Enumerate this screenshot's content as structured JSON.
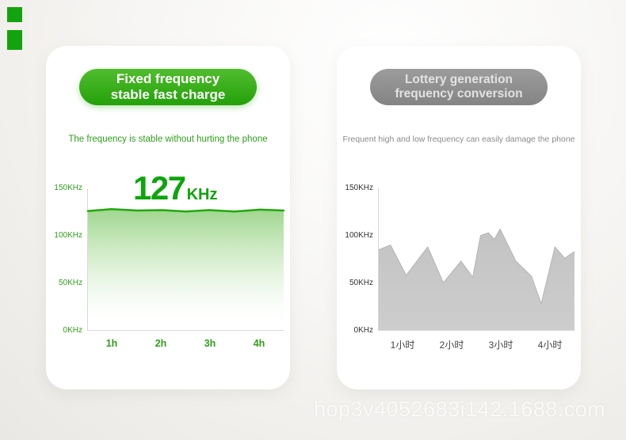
{
  "watermark": "hop3v4052683i142.1688.com",
  "panels": {
    "left": {
      "badge": [
        "Fixed frequency",
        "stable fast charge"
      ],
      "subtitle": "The frequency is stable without hurting the phone",
      "accent": "#23a00a"
    },
    "right": {
      "badge": [
        "Lottery generation",
        "frequency conversion"
      ],
      "subtitle": "Frequent high and low frequency can easily damage the phone",
      "accent": "#8f8f8f"
    }
  },
  "chart_data": [
    {
      "type": "area",
      "title": "Fixed frequency stable fast charge",
      "ylabel": "KHz",
      "ylim": [
        0,
        150
      ],
      "yticks": [
        "150KHz",
        "100KHz",
        "50KHz",
        "0KHz"
      ],
      "categories": [
        "1h",
        "2h",
        "3h",
        "4h"
      ],
      "grid": false,
      "legend": false,
      "annotation": {
        "value": "127",
        "unit": "KHz"
      },
      "points": [
        [
          0,
          126
        ],
        [
          0.12,
          128
        ],
        [
          0.25,
          126.5
        ],
        [
          0.38,
          127
        ],
        [
          0.5,
          125.5
        ],
        [
          0.62,
          127
        ],
        [
          0.75,
          125.5
        ],
        [
          0.88,
          127.5
        ],
        [
          1,
          126.5
        ]
      ],
      "line_color": "#22a70d",
      "line_width": 2.5,
      "tick_color": "#2f9e1a",
      "category_color": "#2f9e1a",
      "fill_stops": [
        {
          "offset": 0,
          "color": "#3fae1f",
          "opacity": 0.5
        },
        {
          "offset": 0.65,
          "color": "#7cc95e",
          "opacity": 0.12
        },
        {
          "offset": 1,
          "color": "#ffffff",
          "opacity": 0
        }
      ]
    },
    {
      "type": "area",
      "title": "Lottery generation frequency conversion",
      "ylabel": "KHz",
      "ylim": [
        0,
        150
      ],
      "yticks": [
        "150KHz",
        "100KHz",
        "50KHz",
        "0KHz"
      ],
      "categories": [
        "1小时",
        "2小时",
        "3小时",
        "4小时"
      ],
      "grid": false,
      "legend": false,
      "points": [
        [
          0,
          85
        ],
        [
          0.06,
          90
        ],
        [
          0.14,
          58
        ],
        [
          0.25,
          88
        ],
        [
          0.33,
          50
        ],
        [
          0.42,
          73
        ],
        [
          0.48,
          56
        ],
        [
          0.52,
          100
        ],
        [
          0.56,
          103
        ],
        [
          0.59,
          96
        ],
        [
          0.62,
          107
        ],
        [
          0.7,
          73
        ],
        [
          0.78,
          57
        ],
        [
          0.83,
          28
        ],
        [
          0.9,
          88
        ],
        [
          0.95,
          76
        ],
        [
          1,
          83
        ]
      ],
      "line_color": "#b5b5b5",
      "line_width": 1,
      "tick_color": "#333333",
      "category_color": "#444444",
      "fill_stops": [
        {
          "offset": 0,
          "color": "#c3c3c3",
          "opacity": 1
        },
        {
          "offset": 1,
          "color": "#cdcdcd",
          "opacity": 1
        }
      ]
    }
  ]
}
